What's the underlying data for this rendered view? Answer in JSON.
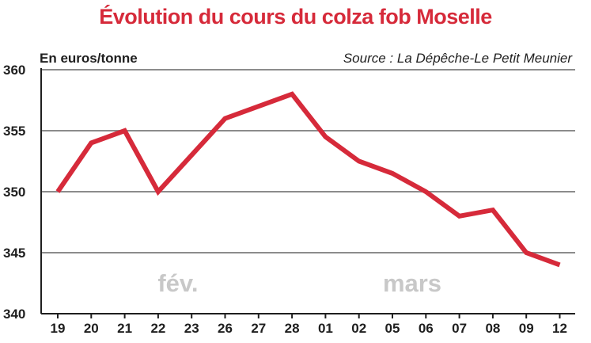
{
  "colors": {
    "line": "#d62a3a",
    "title": "#d62a3a",
    "grid": "#8c8c8c",
    "month": "#c8c8c8"
  },
  "chart_data": {
    "type": "line",
    "title": "Évolution du cours du colza fob Moselle",
    "ylabel": "En euros/tonne",
    "source": "Source : La Dépêche-Le Petit Meunier",
    "ylim": [
      340,
      360
    ],
    "yticks": [
      340,
      345,
      350,
      355,
      360
    ],
    "grid": true,
    "categories": [
      "19",
      "20",
      "21",
      "22",
      "23",
      "26",
      "27",
      "28",
      "01",
      "02",
      "05",
      "06",
      "07",
      "08",
      "09",
      "12"
    ],
    "series": [
      {
        "values": [
          350,
          354,
          355,
          350,
          353,
          356,
          357,
          358,
          354.5,
          352.5,
          351.5,
          350,
          348,
          348.5,
          345,
          344
        ]
      }
    ],
    "annotations": [
      {
        "text": "fév.",
        "at_category": "22"
      },
      {
        "text": "mars",
        "at_category": "05"
      }
    ]
  }
}
